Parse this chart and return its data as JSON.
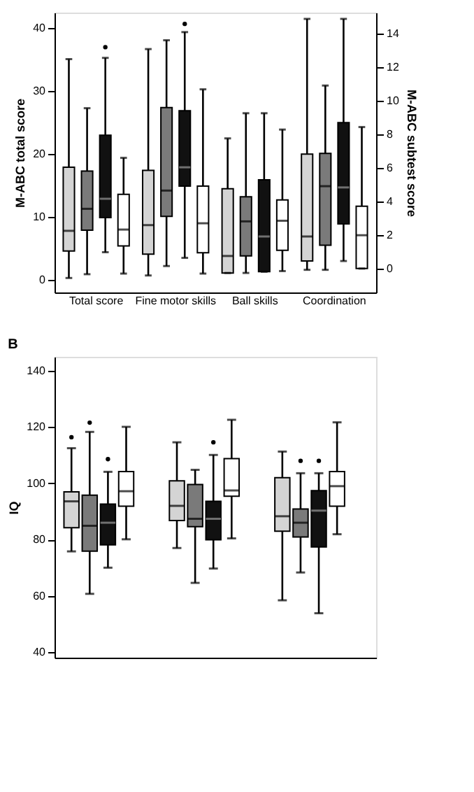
{
  "chart_data": [
    {
      "type": "box",
      "categories": [
        "Total score",
        "Fine motor skills",
        "Ball skills",
        "Coordination"
      ],
      "ylabel": "M-ABC total score",
      "y2label": "M-ABC subtest score",
      "ylim": [
        -2,
        42.5
      ],
      "yticks": [
        0,
        10,
        20,
        30,
        40
      ],
      "y2lim": [
        -1.4,
        15.25
      ],
      "y2ticks": [
        0,
        2,
        4,
        6,
        8,
        10,
        12,
        14
      ],
      "series": [
        {
          "color": "#d4d4d4",
          "boxes": [
            {
              "low": 0.3,
              "q1": 4.6,
              "median": 7.8,
              "q3": 17.9,
              "high": 35.1
            },
            {
              "low": 0.7,
              "q1": 4.1,
              "median": 8.7,
              "q3": 17.4,
              "high": 36.7
            },
            {
              "low": 1.1,
              "q1": 1.1,
              "median": 3.8,
              "q3": 14.5,
              "high": 22.5
            },
            {
              "low": 1.6,
              "q1": 3.0,
              "median": 6.9,
              "q3": 20.0,
              "high": 41.5
            }
          ]
        },
        {
          "color": "#7a7a7a",
          "boxes": [
            {
              "low": 0.9,
              "q1": 7.9,
              "median": 11.3,
              "q3": 17.3,
              "high": 27.3
            },
            {
              "low": 2.2,
              "q1": 10.1,
              "median": 14.2,
              "q3": 27.4,
              "high": 38.1
            },
            {
              "low": 1.1,
              "q1": 3.8,
              "median": 9.3,
              "q3": 13.2,
              "high": 26.5
            },
            {
              "low": 1.6,
              "q1": 5.5,
              "median": 14.9,
              "q3": 20.1,
              "high": 30.9
            }
          ]
        },
        {
          "color": "#111111",
          "boxes": [
            {
              "low": 4.4,
              "q1": 9.9,
              "median": 12.9,
              "q3": 23.0,
              "high": 35.3,
              "outliers": [
                37.0
              ]
            },
            {
              "low": 3.5,
              "q1": 14.9,
              "median": 17.9,
              "q3": 26.9,
              "high": 39.4,
              "outliers": [
                40.7
              ]
            },
            {
              "low": 1.3,
              "q1": 1.3,
              "median": 6.9,
              "q3": 15.9,
              "high": 26.5
            },
            {
              "low": 3.0,
              "q1": 8.9,
              "median": 14.7,
              "q3": 25.0,
              "high": 41.5
            }
          ]
        },
        {
          "color": "#ffffff",
          "boxes": [
            {
              "low": 1.0,
              "q1": 5.4,
              "median": 8.0,
              "q3": 13.6,
              "high": 19.4
            },
            {
              "low": 1.0,
              "q1": 4.3,
              "median": 9.0,
              "q3": 14.9,
              "high": 30.3
            },
            {
              "low": 1.4,
              "q1": 4.7,
              "median": 9.4,
              "q3": 12.7,
              "high": 23.9
            },
            {
              "low": 1.8,
              "q1": 1.8,
              "median": 7.1,
              "q3": 11.7,
              "high": 24.3
            }
          ]
        }
      ]
    },
    {
      "type": "box",
      "title": "B",
      "categories": [
        null,
        null,
        null
      ],
      "ylabel": "IQ",
      "ylim": [
        38,
        145
      ],
      "yticks": [
        40,
        60,
        80,
        100,
        120,
        140
      ],
      "series": [
        {
          "color": "#d4d4d4",
          "boxes": [
            {
              "low": 75.8,
              "q1": 84.2,
              "median": 93.6,
              "q3": 97.0,
              "high": 112.5,
              "outliers": [
                116.4
              ]
            },
            {
              "low": 77.0,
              "q1": 86.8,
              "median": 92.0,
              "q3": 100.9,
              "high": 114.6
            },
            {
              "low": 58.4,
              "q1": 83.0,
              "median": 88.3,
              "q3": 102.0,
              "high": 111.3
            }
          ]
        },
        {
          "color": "#7a7a7a",
          "boxes": [
            {
              "low": 60.7,
              "q1": 75.9,
              "median": 84.9,
              "q3": 95.8,
              "high": 118.3,
              "outliers": [
                121.6
              ]
            },
            {
              "low": 64.6,
              "q1": 84.6,
              "median": 87.4,
              "q3": 99.6,
              "high": 104.8
            },
            {
              "low": 68.3,
              "q1": 80.9,
              "median": 86.0,
              "q3": 90.9,
              "high": 103.6,
              "outliers": [
                108.0
              ]
            }
          ]
        },
        {
          "color": "#111111",
          "boxes": [
            {
              "low": 70.0,
              "q1": 78.1,
              "median": 86.0,
              "q3": 92.6,
              "high": 104.1,
              "outliers": [
                108.6
              ]
            },
            {
              "low": 69.7,
              "q1": 79.9,
              "median": 87.4,
              "q3": 93.6,
              "high": 110.1,
              "outliers": [
                114.6
              ]
            },
            {
              "low": 53.8,
              "q1": 77.4,
              "median": 90.3,
              "q3": 97.4,
              "high": 103.6,
              "outliers": [
                108.0
              ]
            }
          ]
        },
        {
          "color": "#ffffff",
          "boxes": [
            {
              "low": 80.1,
              "q1": 91.9,
              "median": 97.2,
              "q3": 104.2,
              "high": 120.1
            },
            {
              "low": 80.4,
              "q1": 95.4,
              "median": 97.5,
              "q3": 108.8,
              "high": 122.6
            },
            {
              "low": 81.9,
              "q1": 91.9,
              "median": 99.0,
              "q3": 104.2,
              "high": 121.7
            }
          ]
        }
      ]
    }
  ]
}
